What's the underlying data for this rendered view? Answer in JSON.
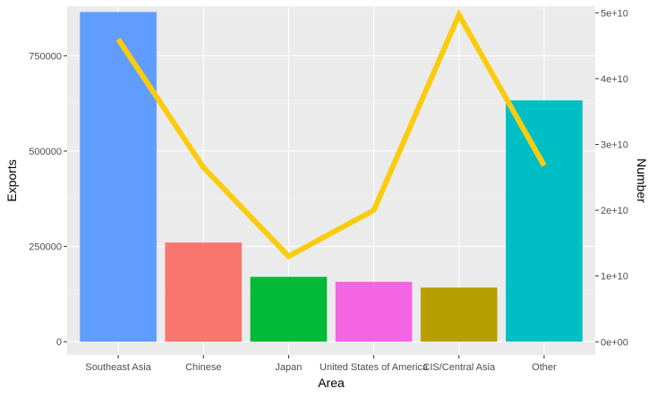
{
  "chart_data": {
    "type": "bar",
    "xlabel": "Area",
    "ylabel": "Exports",
    "y2label": "Number",
    "categories": [
      "Southeast Asia",
      "Chinese",
      "Japan",
      "United States of America",
      "CIS/Central Asia",
      "Other"
    ],
    "ylim": [
      -35000,
      880000
    ],
    "y_ticks": [
      0,
      250000,
      500000,
      750000
    ],
    "y_tick_labels": [
      "0",
      "250000",
      "500000",
      "750000"
    ],
    "y2lim": [
      -2000000000.0,
      51000000000.0
    ],
    "y2_ticks": [
      0,
      10000000000.0,
      20000000000.0,
      30000000000.0,
      40000000000.0,
      50000000000.0
    ],
    "y2_tick_labels": [
      "0e+00",
      "1e+10",
      "2e+10",
      "3e+10",
      "4e+10",
      "5e+10"
    ],
    "grid": true,
    "legend": "none",
    "series": [
      {
        "kind": "bar",
        "values": [
          865000,
          260000,
          170000,
          157000,
          142000,
          633000
        ],
        "colors": [
          "#619CFF",
          "#F8766D",
          "#00BA38",
          "#F564E3",
          "#B79F00",
          "#00BFC4"
        ],
        "axis": "left"
      },
      {
        "kind": "line",
        "values": [
          46000000000.0,
          26500000000.0,
          13000000000.0,
          20000000000.0,
          49700000000.0,
          26800000000.0
        ],
        "color": "#F9CC0E",
        "axis": "right"
      }
    ]
  }
}
